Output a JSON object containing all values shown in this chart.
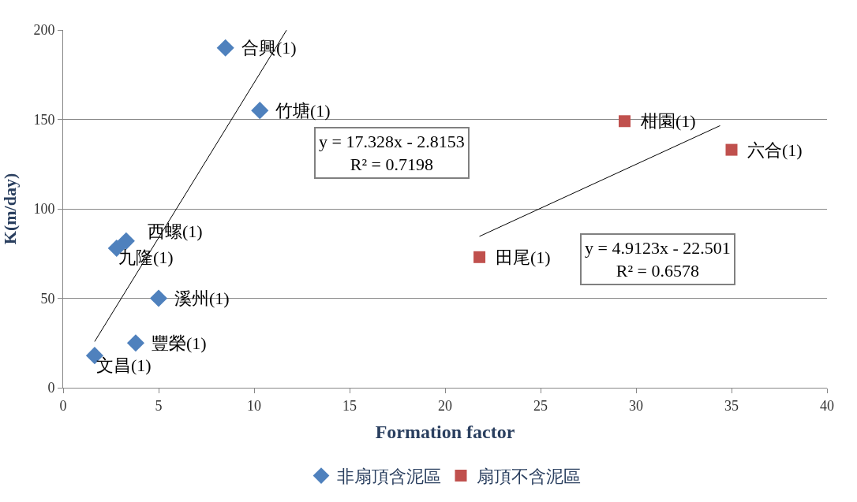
{
  "chart_data": {
    "type": "scatter",
    "xlabel": "Formation factor",
    "ylabel": "K(m/day)",
    "xlim": [
      0,
      40
    ],
    "xticks": [
      0,
      5,
      10,
      15,
      20,
      25,
      30,
      35,
      40
    ],
    "ylim": [
      0,
      200
    ],
    "yticks": [
      0,
      50,
      100,
      150,
      200
    ],
    "grid": "y",
    "legend": "bottom",
    "series": [
      {
        "name": "非扇頂含泥區",
        "color": "#4f81bd",
        "marker": "diamond",
        "x": [
          8.5,
          10.3,
          3.3,
          2.8,
          5.0,
          3.8,
          1.65
        ],
        "values": [
          190,
          155,
          82,
          78,
          50,
          25,
          18
        ]
      },
      {
        "name": "扇頂不含泥區",
        "color": "#c0504d",
        "marker": "square",
        "x": [
          29.4,
          35.0,
          21.8
        ],
        "values": [
          149,
          133,
          73
        ]
      },
      {
        "type": "line",
        "color": "#000000",
        "marker": "none",
        "x": [
          1.65,
          11.7
        ],
        "values": [
          25.8,
          199.9
        ]
      },
      {
        "type": "line",
        "color": "#000000",
        "marker": "none",
        "x": [
          21.8,
          34.4
        ],
        "values": [
          84.6,
          146.5
        ]
      }
    ],
    "annotations": [
      {
        "text": "合興(1)",
        "x": 8.5,
        "y": 190
      },
      {
        "text": "竹塘(1)",
        "x": 10.3,
        "y": 155
      },
      {
        "text": "西螺(1)",
        "x": 3.3,
        "y": 82
      },
      {
        "text": "九隆(1)",
        "x": 2.8,
        "y": 78
      },
      {
        "text": "溪州(1)",
        "x": 5.0,
        "y": 50
      },
      {
        "text": "豐榮(1)",
        "x": 3.8,
        "y": 25
      },
      {
        "text": "文昌(1)",
        "x": 1.65,
        "y": 18
      },
      {
        "text": "柑園(1)",
        "x": 29.4,
        "y": 149
      },
      {
        "text": "六合(1)",
        "x": 35.0,
        "y": 133
      },
      {
        "text": "田尾(1)",
        "x": 21.8,
        "y": 73
      },
      "y = 17.328x - 2.8153\nR² = 0.7198",
      "y = 4.9123x - 22.501\nR² = 0.6578"
    ]
  }
}
